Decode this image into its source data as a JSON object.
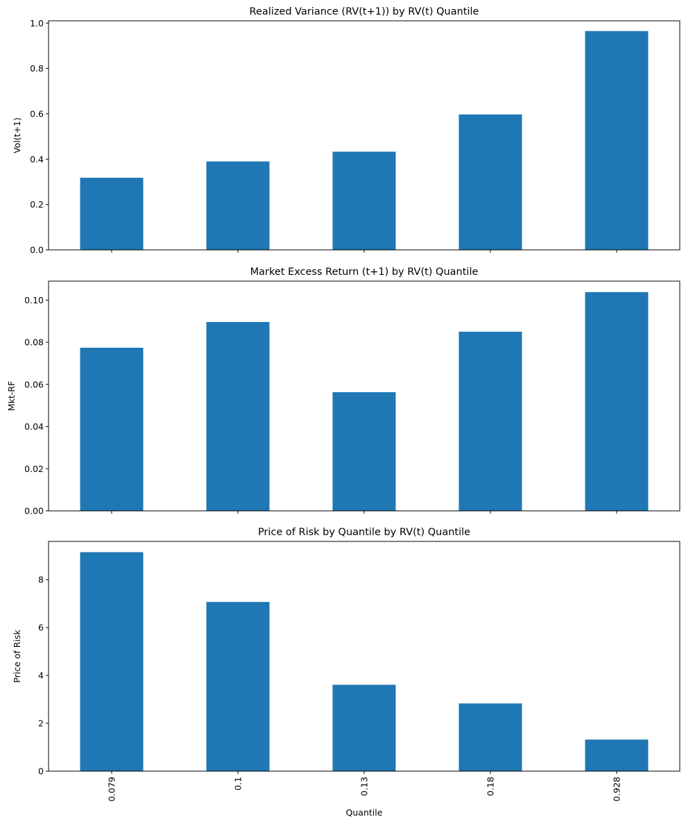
{
  "chart_data": [
    {
      "type": "bar",
      "title": "Realized Variance (RV(t+1)) by RV(t) Quantile",
      "xlabel": "",
      "ylabel": "Vol(t+1)",
      "categories": [
        "0.079",
        "0.1",
        "0.13",
        "0.18",
        "0.928"
      ],
      "values": [
        0.318,
        0.39,
        0.433,
        0.597,
        0.965
      ],
      "ylim": [
        0,
        1.01
      ],
      "yticks": [
        0.0,
        0.2,
        0.4,
        0.6,
        0.8,
        1.0
      ],
      "ytick_labels": [
        "0.0",
        "0.2",
        "0.4",
        "0.6",
        "0.8",
        "1.0"
      ],
      "show_xtick_labels": false,
      "color": "#1f77b4",
      "grid": false
    },
    {
      "type": "bar",
      "title": "Market Excess Return (t+1) by RV(t) Quantile",
      "xlabel": "",
      "ylabel": "Mkt-RF",
      "categories": [
        "0.079",
        "0.1",
        "0.13",
        "0.18",
        "0.928"
      ],
      "values": [
        0.0774,
        0.0896,
        0.0563,
        0.085,
        0.1038
      ],
      "ylim": [
        0,
        0.109
      ],
      "yticks": [
        0.0,
        0.02,
        0.04,
        0.06,
        0.08,
        0.1
      ],
      "ytick_labels": [
        "0.00",
        "0.02",
        "0.04",
        "0.06",
        "0.08",
        "0.10"
      ],
      "show_xtick_labels": false,
      "color": "#1f77b4",
      "grid": false
    },
    {
      "type": "bar",
      "title": "Price of Risk by Quantile by RV(t) Quantile",
      "xlabel": "Quantile",
      "ylabel": "Price of Risk",
      "categories": [
        "0.079",
        "0.1",
        "0.13",
        "0.18",
        "0.928"
      ],
      "values": [
        9.15,
        7.07,
        3.61,
        2.83,
        1.32
      ],
      "ylim": [
        0,
        9.6
      ],
      "yticks": [
        0,
        2,
        4,
        6,
        8
      ],
      "ytick_labels": [
        "0",
        "2",
        "4",
        "6",
        "8"
      ],
      "show_xtick_labels": true,
      "color": "#1f77b4",
      "grid": false
    }
  ]
}
